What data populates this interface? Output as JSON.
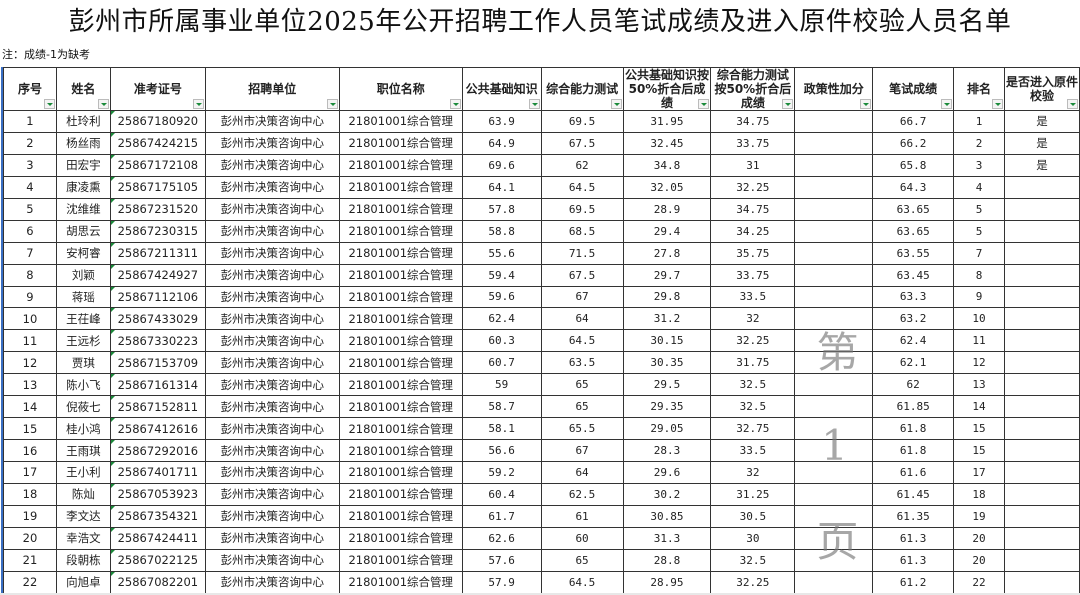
{
  "title": "彭州市所属事业单位2025年公开招聘工作人员笔试成绩及进入原件校验人员名单",
  "note": "注：成绩-1为缺考",
  "watermark": "第 1 页",
  "headers": [
    "序号",
    "姓名",
    "准考证号",
    "招聘单位",
    "职位名称",
    "公共基础知识",
    "综合能力测试",
    "公共基础知识按50%折合后成绩",
    "综合能力测试按50%折合后成绩",
    "政策性加分",
    "笔试成绩",
    "排名",
    "是否进入原件校验"
  ],
  "rows": [
    [
      "1",
      "杜玲利",
      "25867180920",
      "彭州市决策咨询中心",
      "21801001综合管理",
      "63.9",
      "69.5",
      "31.95",
      "34.75",
      "",
      "66.7",
      "1",
      "是"
    ],
    [
      "2",
      "杨丝雨",
      "25867424215",
      "彭州市决策咨询中心",
      "21801001综合管理",
      "64.9",
      "67.5",
      "32.45",
      "33.75",
      "",
      "66.2",
      "2",
      "是"
    ],
    [
      "3",
      "田宏宇",
      "25867172108",
      "彭州市决策咨询中心",
      "21801001综合管理",
      "69.6",
      "62",
      "34.8",
      "31",
      "",
      "65.8",
      "3",
      "是"
    ],
    [
      "4",
      "康凌熏",
      "25867175105",
      "彭州市决策咨询中心",
      "21801001综合管理",
      "64.1",
      "64.5",
      "32.05",
      "32.25",
      "",
      "64.3",
      "4",
      ""
    ],
    [
      "5",
      "沈维维",
      "25867231520",
      "彭州市决策咨询中心",
      "21801001综合管理",
      "57.8",
      "69.5",
      "28.9",
      "34.75",
      "",
      "63.65",
      "5",
      ""
    ],
    [
      "6",
      "胡思云",
      "25867230315",
      "彭州市决策咨询中心",
      "21801001综合管理",
      "58.8",
      "68.5",
      "29.4",
      "34.25",
      "",
      "63.65",
      "5",
      ""
    ],
    [
      "7",
      "安柯睿",
      "25867211311",
      "彭州市决策咨询中心",
      "21801001综合管理",
      "55.6",
      "71.5",
      "27.8",
      "35.75",
      "",
      "63.55",
      "7",
      ""
    ],
    [
      "8",
      "刘颖",
      "25867424927",
      "彭州市决策咨询中心",
      "21801001综合管理",
      "59.4",
      "67.5",
      "29.7",
      "33.75",
      "",
      "63.45",
      "8",
      ""
    ],
    [
      "9",
      "蒋瑶",
      "25867112106",
      "彭州市决策咨询中心",
      "21801001综合管理",
      "59.6",
      "67",
      "29.8",
      "33.5",
      "",
      "63.3",
      "9",
      ""
    ],
    [
      "10",
      "王茌峰",
      "25867433029",
      "彭州市决策咨询中心",
      "21801001综合管理",
      "62.4",
      "64",
      "31.2",
      "32",
      "",
      "63.2",
      "10",
      ""
    ],
    [
      "11",
      "王远杉",
      "25867330223",
      "彭州市决策咨询中心",
      "21801001综合管理",
      "60.3",
      "64.5",
      "30.15",
      "32.25",
      "",
      "62.4",
      "11",
      ""
    ],
    [
      "12",
      "贾琪",
      "25867153709",
      "彭州市决策咨询中心",
      "21801001综合管理",
      "60.7",
      "63.5",
      "30.35",
      "31.75",
      "",
      "62.1",
      "12",
      ""
    ],
    [
      "13",
      "陈小飞",
      "25867161314",
      "彭州市决策咨询中心",
      "21801001综合管理",
      "59",
      "65",
      "29.5",
      "32.5",
      "",
      "62",
      "13",
      ""
    ],
    [
      "14",
      "倪莜七",
      "25867152811",
      "彭州市决策咨询中心",
      "21801001综合管理",
      "58.7",
      "65",
      "29.35",
      "32.5",
      "",
      "61.85",
      "14",
      ""
    ],
    [
      "15",
      "桂小鸿",
      "25867412616",
      "彭州市决策咨询中心",
      "21801001综合管理",
      "58.1",
      "65.5",
      "29.05",
      "32.75",
      "",
      "61.8",
      "15",
      ""
    ],
    [
      "16",
      "王雨琪",
      "25867292016",
      "彭州市决策咨询中心",
      "21801001综合管理",
      "56.6",
      "67",
      "28.3",
      "33.5",
      "",
      "61.8",
      "15",
      ""
    ],
    [
      "17",
      "王小利",
      "25867401711",
      "彭州市决策咨询中心",
      "21801001综合管理",
      "59.2",
      "64",
      "29.6",
      "32",
      "",
      "61.6",
      "17",
      ""
    ],
    [
      "18",
      "陈灿",
      "25867053923",
      "彭州市决策咨询中心",
      "21801001综合管理",
      "60.4",
      "62.5",
      "30.2",
      "31.25",
      "",
      "61.45",
      "18",
      ""
    ],
    [
      "19",
      "李文达",
      "25867354321",
      "彭州市决策咨询中心",
      "21801001综合管理",
      "61.7",
      "61",
      "30.85",
      "30.5",
      "",
      "61.35",
      "19",
      ""
    ],
    [
      "20",
      "幸浩文",
      "25867424411",
      "彭州市决策咨询中心",
      "21801001综合管理",
      "62.6",
      "60",
      "31.3",
      "30",
      "",
      "61.3",
      "20",
      ""
    ],
    [
      "21",
      "段朝栋",
      "25867022125",
      "彭州市决策咨询中心",
      "21801001综合管理",
      "57.6",
      "65",
      "28.8",
      "32.5",
      "",
      "61.3",
      "20",
      ""
    ],
    [
      "22",
      "向旭卓",
      "25867082201",
      "彭州市决策咨询中心",
      "21801001综合管理",
      "57.9",
      "64.5",
      "28.95",
      "32.25",
      "",
      "61.2",
      "22",
      ""
    ]
  ]
}
